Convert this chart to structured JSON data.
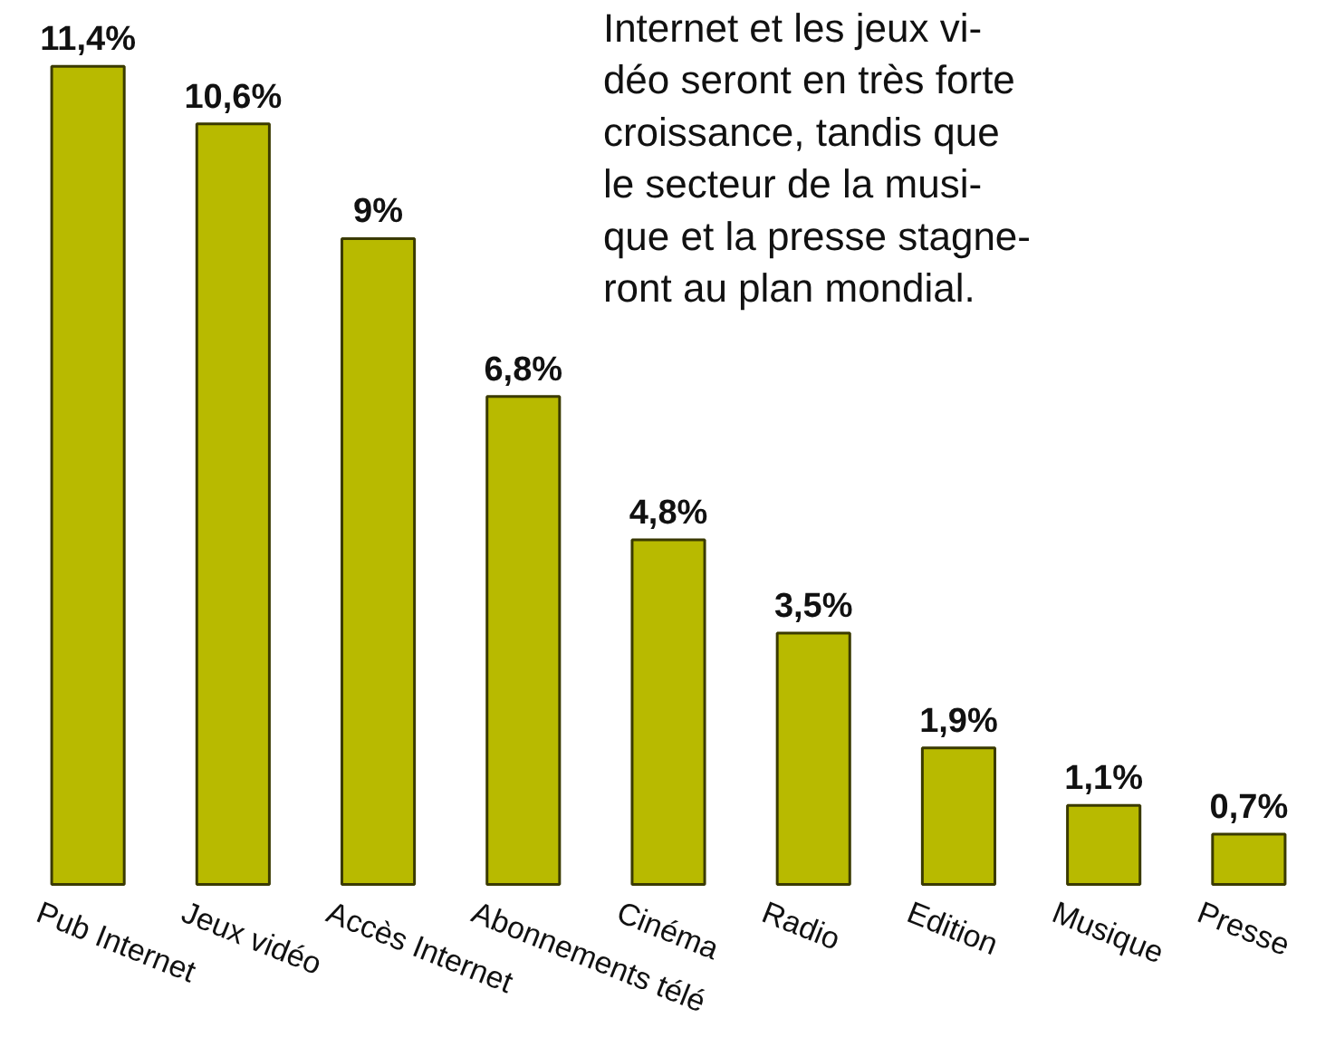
{
  "chart_data": {
    "type": "bar",
    "categories": [
      "Pub Internet",
      "Jeux vidéo",
      "Accès Internet",
      "Abonnements télé",
      "Cinéma",
      "Radio",
      "Edition",
      "Musique",
      "Presse"
    ],
    "values": [
      11.4,
      10.6,
      9,
      6.8,
      4.8,
      3.5,
      1.9,
      1.1,
      0.7
    ],
    "value_labels": [
      "11,4%",
      "10,6%",
      "9%",
      "6,8%",
      "4,8%",
      "3,5%",
      "1,9%",
      "1,1%",
      "0,7%"
    ],
    "color": "#b8ba00",
    "annotations": [
      "Internet et les jeux vi-\ndéo seront en très forte\ncroissance, tandis que\nle secteur de la musi-\nque et la presse stagne-\nront au plan mondial."
    ],
    "grid": false
  }
}
